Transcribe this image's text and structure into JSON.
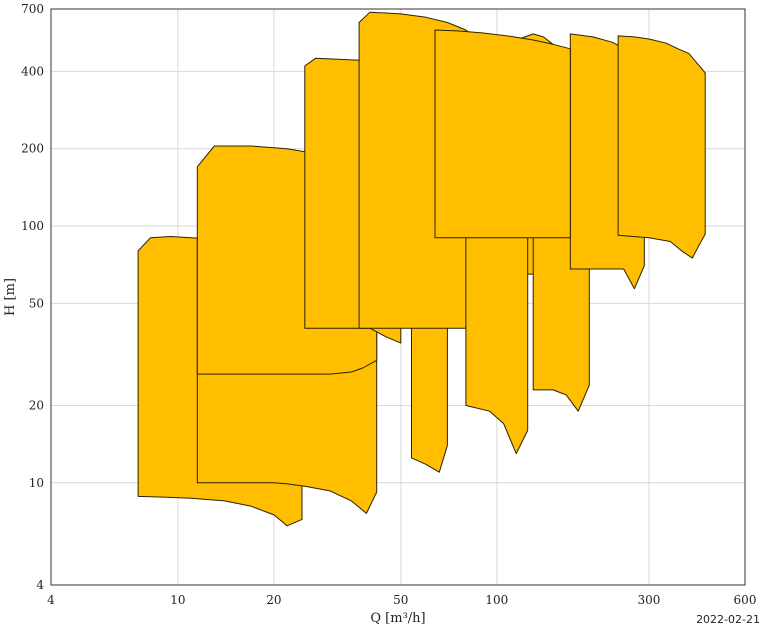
{
  "chart_data": {
    "type": "area",
    "xlabel": "Q [m³/h]",
    "ylabel": "H [m]",
    "xscale": "log",
    "yscale": "log",
    "xlim": [
      4,
      600
    ],
    "ylim": [
      4,
      700
    ],
    "xticks": [
      4,
      10,
      20,
      50,
      100,
      300,
      600
    ],
    "yticks": [
      4,
      10,
      20,
      50,
      100,
      200,
      400,
      700
    ],
    "grid": true,
    "fill_color": "#ffbf00",
    "edge_color": "#2b2200",
    "polygons": [
      [
        [
          7.5,
          80
        ],
        [
          8.2,
          90
        ],
        [
          9.5,
          91
        ],
        [
          11,
          90
        ],
        [
          13,
          89
        ],
        [
          15,
          87
        ],
        [
          17,
          85
        ],
        [
          20,
          81
        ],
        [
          22,
          76
        ],
        [
          24.5,
          70
        ],
        [
          24.5,
          7.2
        ],
        [
          22,
          6.8
        ],
        [
          20,
          7.5
        ],
        [
          17,
          8.1
        ],
        [
          14,
          8.5
        ],
        [
          11,
          8.7
        ],
        [
          9,
          8.8
        ],
        [
          7.5,
          8.85
        ],
        [
          7.5,
          80
        ]
      ],
      [
        [
          11.5,
          90
        ],
        [
          13,
          92
        ],
        [
          16,
          89
        ],
        [
          20,
          86
        ],
        [
          25,
          80
        ],
        [
          30,
          74
        ],
        [
          40,
          63
        ],
        [
          42,
          55
        ],
        [
          42,
          9.2
        ],
        [
          39,
          7.6
        ],
        [
          35,
          8.5
        ],
        [
          30,
          9.3
        ],
        [
          25,
          9.7
        ],
        [
          22,
          9.9
        ],
        [
          20,
          10
        ],
        [
          11.5,
          10
        ],
        [
          11.5,
          90
        ]
      ],
      [
        [
          54,
          60
        ],
        [
          58,
          62
        ],
        [
          65,
          60
        ],
        [
          70,
          55
        ],
        [
          70,
          14
        ],
        [
          66,
          11
        ],
        [
          60,
          11.8
        ],
        [
          54,
          12.5
        ],
        [
          54,
          60
        ]
      ],
      [
        [
          11.5,
          170
        ],
        [
          13,
          205
        ],
        [
          17,
          205
        ],
        [
          22,
          200
        ],
        [
          28,
          190
        ],
        [
          35,
          180
        ],
        [
          40,
          170
        ],
        [
          42,
          160
        ],
        [
          42,
          30
        ],
        [
          38,
          28
        ],
        [
          35,
          27
        ],
        [
          30,
          26.5
        ],
        [
          11.5,
          26.5
        ],
        [
          11.5,
          170
        ]
      ],
      [
        [
          25,
          420
        ],
        [
          27,
          450
        ],
        [
          33,
          445
        ],
        [
          40,
          440
        ],
        [
          47,
          425
        ],
        [
          50,
          410
        ],
        [
          50,
          35
        ],
        [
          45,
          37
        ],
        [
          40,
          40
        ],
        [
          25,
          40
        ],
        [
          25,
          420
        ]
      ],
      [
        [
          37,
          620
        ],
        [
          40,
          680
        ],
        [
          50,
          670
        ],
        [
          60,
          650
        ],
        [
          70,
          620
        ],
        [
          80,
          580
        ],
        [
          90,
          520
        ],
        [
          100,
          480
        ],
        [
          100,
          45
        ],
        [
          95,
          37
        ],
        [
          90,
          40
        ],
        [
          37,
          40
        ],
        [
          37,
          620
        ]
      ],
      [
        [
          120,
          540
        ],
        [
          130,
          560
        ],
        [
          140,
          545
        ],
        [
          150,
          510
        ],
        [
          150,
          60
        ],
        [
          145,
          65
        ],
        [
          120,
          65
        ],
        [
          120,
          540
        ]
      ],
      [
        [
          80,
          170
        ],
        [
          85,
          168
        ],
        [
          100,
          160
        ],
        [
          115,
          140
        ],
        [
          125,
          125
        ],
        [
          125,
          16
        ],
        [
          115,
          13
        ],
        [
          105,
          17
        ],
        [
          95,
          19
        ],
        [
          80,
          20
        ],
        [
          80,
          170
        ]
      ],
      [
        [
          130,
          250
        ],
        [
          140,
          245
        ],
        [
          160,
          230
        ],
        [
          180,
          210
        ],
        [
          195,
          195
        ],
        [
          195,
          24
        ],
        [
          180,
          19
        ],
        [
          165,
          22
        ],
        [
          150,
          23
        ],
        [
          130,
          23
        ],
        [
          130,
          250
        ]
      ],
      [
        [
          170,
          560
        ],
        [
          200,
          545
        ],
        [
          230,
          520
        ],
        [
          260,
          480
        ],
        [
          280,
          460
        ],
        [
          290,
          450
        ],
        [
          290,
          70
        ],
        [
          270,
          57
        ],
        [
          250,
          68
        ],
        [
          170,
          68
        ],
        [
          170,
          560
        ]
      ],
      [
        [
          240,
          550
        ],
        [
          270,
          545
        ],
        [
          300,
          535
        ],
        [
          340,
          515
        ],
        [
          370,
          490
        ],
        [
          400,
          470
        ],
        [
          450,
          395
        ],
        [
          450,
          93
        ],
        [
          430,
          84
        ],
        [
          410,
          75
        ],
        [
          380,
          80
        ],
        [
          350,
          87
        ],
        [
          300,
          90
        ],
        [
          240,
          92
        ],
        [
          240,
          550
        ]
      ],
      [
        [
          64,
          580
        ],
        [
          75,
          575
        ],
        [
          90,
          565
        ],
        [
          110,
          548
        ],
        [
          130,
          530
        ],
        [
          150,
          510
        ],
        [
          170,
          490
        ],
        [
          170,
          90
        ],
        [
          64,
          90
        ],
        [
          64,
          580
        ]
      ]
    ]
  },
  "footer": {
    "date": "2022-02-21"
  }
}
